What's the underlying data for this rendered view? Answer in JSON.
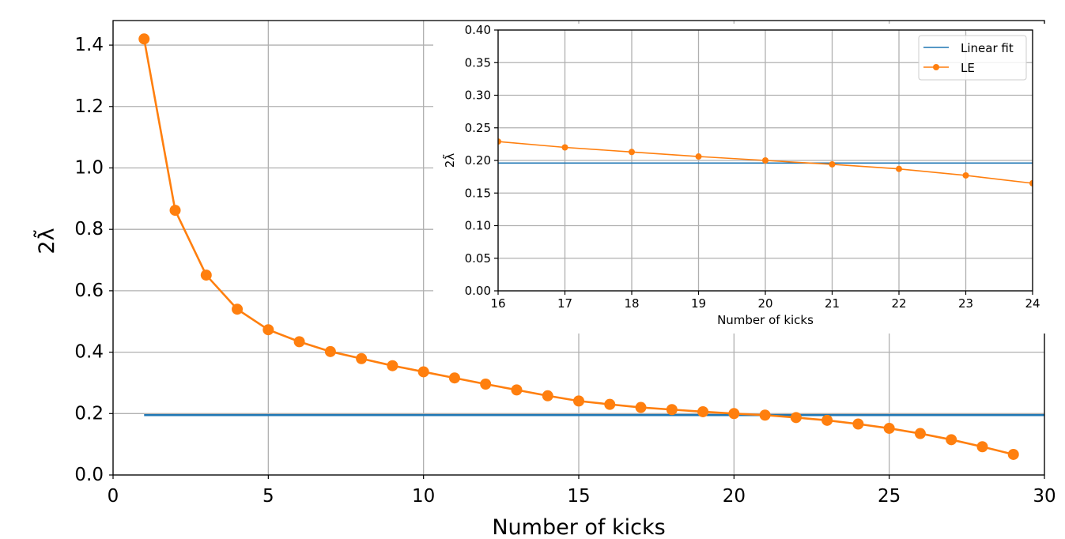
{
  "colors": {
    "fit": "#1f77b4",
    "le": "#ff7f0e",
    "grid": "#b0b0b0"
  },
  "chart_data": [
    {
      "type": "line",
      "xlabel": "Number of kicks",
      "ylabel": "2λ̃",
      "xlim": [
        0,
        30
      ],
      "ylim": [
        0,
        1.48
      ],
      "xticks": [
        "0",
        "5",
        "10",
        "15",
        "20",
        "25",
        "30"
      ],
      "yticks": [
        "0.0",
        "0.2",
        "0.4",
        "0.6",
        "0.8",
        "1.0",
        "1.2",
        "1.4"
      ],
      "grid": true,
      "series": [
        {
          "name": "Linear fit",
          "style": "line",
          "color": "#1f77b4",
          "x": [
            1,
            30
          ],
          "y": [
            0.195,
            0.195
          ]
        },
        {
          "name": "LE",
          "style": "line-marker",
          "color": "#ff7f0e",
          "x": [
            1,
            2,
            3,
            4,
            5,
            6,
            7,
            8,
            9,
            10,
            11,
            12,
            13,
            14,
            15,
            16,
            17,
            18,
            19,
            20,
            21,
            22,
            23,
            24,
            25,
            26,
            27,
            28,
            29
          ],
          "y": [
            1.42,
            0.862,
            0.651,
            0.54,
            0.473,
            0.434,
            0.402,
            0.379,
            0.356,
            0.336,
            0.316,
            0.296,
            0.277,
            0.258,
            0.241,
            0.23,
            0.22,
            0.213,
            0.206,
            0.2,
            0.195,
            0.187,
            0.178,
            0.166,
            0.152,
            0.135,
            0.115,
            0.092,
            0.067
          ]
        }
      ]
    },
    {
      "type": "line",
      "xlabel": "Number of kicks",
      "ylabel": "2λ̃",
      "xlim": [
        16,
        24
      ],
      "ylim": [
        0,
        0.4
      ],
      "xticks": [
        "16",
        "17",
        "18",
        "19",
        "20",
        "21",
        "22",
        "23",
        "24"
      ],
      "yticks": [
        "0.00",
        "0.05",
        "0.10",
        "0.15",
        "0.20",
        "0.25",
        "0.30",
        "0.35",
        "0.40"
      ],
      "grid": true,
      "legend": {
        "placement": "top-right",
        "entries": [
          "Linear fit",
          "LE"
        ]
      },
      "series": [
        {
          "name": "Linear fit",
          "style": "line",
          "color": "#1f77b4",
          "x": [
            16,
            24
          ],
          "y": [
            0.196,
            0.196
          ]
        },
        {
          "name": "LE",
          "style": "line-marker",
          "color": "#ff7f0e",
          "x": [
            16,
            17,
            18,
            19,
            20,
            21,
            22,
            23,
            24
          ],
          "y": [
            0.229,
            0.22,
            0.213,
            0.206,
            0.2,
            0.194,
            0.187,
            0.177,
            0.165
          ]
        }
      ]
    }
  ]
}
